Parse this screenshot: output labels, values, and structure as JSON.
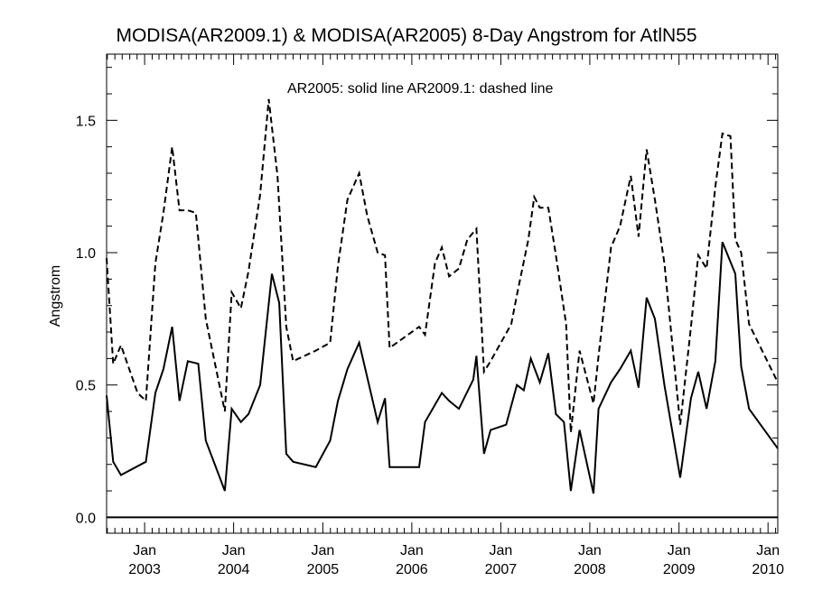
{
  "chart_data": {
    "type": "line",
    "title": "MODISA(AR2009.1) & MODISA(AR2005) 8-Day Angstrom for AtlN55",
    "ylabel": "Angstrom",
    "xlabel": "",
    "annotation": "AR2005: solid line   AR2009.1: dashed line",
    "ylim": [
      -0.06,
      1.75
    ],
    "xlim": [
      "2002-07-29",
      "2010-02-10"
    ],
    "y_ticks": [
      {
        "value": 0.0,
        "label": "0.0"
      },
      {
        "value": 0.5,
        "label": "0.5"
      },
      {
        "value": 1.0,
        "label": "1.0"
      },
      {
        "value": 1.5,
        "label": "1.5"
      }
    ],
    "x_ticks": [
      {
        "date": "2003-01-01",
        "label": "Jan",
        "year": "2003"
      },
      {
        "date": "2004-01-01",
        "label": "Jan",
        "year": "2004"
      },
      {
        "date": "2005-01-01",
        "label": "Jan",
        "year": "2005"
      },
      {
        "date": "2006-01-01",
        "label": "Jan",
        "year": "2006"
      },
      {
        "date": "2007-01-01",
        "label": "Jan",
        "year": "2007"
      },
      {
        "date": "2008-01-01",
        "label": "Jan",
        "year": "2008"
      },
      {
        "date": "2009-01-01",
        "label": "Jan",
        "year": "2009"
      },
      {
        "date": "2010-01-01",
        "label": "Jan",
        "year": "2010"
      }
    ],
    "grid": false,
    "series": [
      {
        "name": "AR2005",
        "style": "solid",
        "color": "#000000",
        "points": [
          [
            "2002-07-29",
            0.46
          ],
          [
            "2002-08-25",
            0.21
          ],
          [
            "2002-09-26",
            0.16
          ],
          [
            "2003-01-06",
            0.21
          ],
          [
            "2003-02-14",
            0.47
          ],
          [
            "2003-03-19",
            0.56
          ],
          [
            "2003-04-24",
            0.72
          ],
          [
            "2003-05-24",
            0.44
          ],
          [
            "2003-06-27",
            0.59
          ],
          [
            "2003-08-09",
            0.58
          ],
          [
            "2003-09-09",
            0.29
          ],
          [
            "2003-11-26",
            0.1
          ],
          [
            "2003-12-24",
            0.41
          ],
          [
            "2004-01-31",
            0.36
          ],
          [
            "2004-03-02",
            0.39
          ],
          [
            "2004-04-19",
            0.5
          ],
          [
            "2004-06-06",
            0.92
          ],
          [
            "2004-07-06",
            0.81
          ],
          [
            "2004-08-04",
            0.24
          ],
          [
            "2004-09-01",
            0.21
          ],
          [
            "2004-12-03",
            0.19
          ],
          [
            "2005-01-31",
            0.29
          ],
          [
            "2005-03-04",
            0.44
          ],
          [
            "2005-04-12",
            0.56
          ],
          [
            "2005-05-30",
            0.66
          ],
          [
            "2005-08-14",
            0.36
          ],
          [
            "2005-09-13",
            0.45
          ],
          [
            "2005-10-02",
            0.19
          ],
          [
            "2006-01-31",
            0.19
          ],
          [
            "2006-02-24",
            0.36
          ],
          [
            "2006-05-04",
            0.47
          ],
          [
            "2006-06-03",
            0.44
          ],
          [
            "2006-07-13",
            0.41
          ],
          [
            "2006-09-10",
            0.52
          ],
          [
            "2006-09-23",
            0.61
          ],
          [
            "2006-10-24",
            0.24
          ],
          [
            "2006-11-20",
            0.33
          ],
          [
            "2007-01-23",
            0.35
          ],
          [
            "2007-03-08",
            0.5
          ],
          [
            "2007-04-05",
            0.48
          ],
          [
            "2007-05-04",
            0.6
          ],
          [
            "2007-06-10",
            0.51
          ],
          [
            "2007-07-15",
            0.62
          ],
          [
            "2007-08-15",
            0.39
          ],
          [
            "2007-09-17",
            0.36
          ],
          [
            "2007-10-15",
            0.1
          ],
          [
            "2007-11-20",
            0.33
          ],
          [
            "2008-01-16",
            0.09
          ],
          [
            "2008-02-06",
            0.41
          ],
          [
            "2008-03-28",
            0.51
          ],
          [
            "2008-05-04",
            0.56
          ],
          [
            "2008-06-17",
            0.63
          ],
          [
            "2008-07-19",
            0.49
          ],
          [
            "2008-08-21",
            0.83
          ],
          [
            "2008-09-24",
            0.75
          ],
          [
            "2008-11-02",
            0.5
          ],
          [
            "2009-01-06",
            0.15
          ],
          [
            "2009-02-19",
            0.45
          ],
          [
            "2009-03-21",
            0.55
          ],
          [
            "2009-04-24",
            0.41
          ],
          [
            "2009-05-30",
            0.59
          ],
          [
            "2009-06-28",
            1.04
          ],
          [
            "2009-08-20",
            0.92
          ],
          [
            "2009-09-13",
            0.57
          ],
          [
            "2009-10-15",
            0.41
          ],
          [
            "2010-02-10",
            0.26
          ]
        ]
      },
      {
        "name": "AR2009.1",
        "style": "dashed",
        "color": "#000000",
        "points": [
          [
            "2002-07-29",
            0.98
          ],
          [
            "2002-08-25",
            0.58
          ],
          [
            "2002-09-26",
            0.65
          ],
          [
            "2002-12-03",
            0.47
          ],
          [
            "2003-01-06",
            0.44
          ],
          [
            "2003-02-14",
            0.96
          ],
          [
            "2003-03-19",
            1.15
          ],
          [
            "2003-04-24",
            1.4
          ],
          [
            "2003-05-24",
            1.16
          ],
          [
            "2003-06-27",
            1.16
          ],
          [
            "2003-07-30",
            1.15
          ],
          [
            "2003-09-09",
            0.75
          ],
          [
            "2003-11-26",
            0.4
          ],
          [
            "2003-12-24",
            0.85
          ],
          [
            "2004-01-31",
            0.79
          ],
          [
            "2004-03-02",
            0.93
          ],
          [
            "2004-04-19",
            1.22
          ],
          [
            "2004-05-24",
            1.58
          ],
          [
            "2004-06-29",
            1.29
          ],
          [
            "2004-08-04",
            0.72
          ],
          [
            "2004-09-01",
            0.59
          ],
          [
            "2004-12-03",
            0.63
          ],
          [
            "2005-01-31",
            0.66
          ],
          [
            "2005-03-04",
            0.95
          ],
          [
            "2005-04-12",
            1.2
          ],
          [
            "2005-05-30",
            1.3
          ],
          [
            "2005-07-02",
            1.14
          ],
          [
            "2005-08-14",
            1.0
          ],
          [
            "2005-09-13",
            0.99
          ],
          [
            "2005-10-02",
            0.64
          ],
          [
            "2006-01-31",
            0.72
          ],
          [
            "2006-02-24",
            0.69
          ],
          [
            "2006-04-06",
            0.96
          ],
          [
            "2006-05-04",
            1.02
          ],
          [
            "2006-06-03",
            0.91
          ],
          [
            "2006-07-13",
            0.94
          ],
          [
            "2006-08-17",
            1.05
          ],
          [
            "2006-09-23",
            1.09
          ],
          [
            "2006-10-24",
            0.55
          ],
          [
            "2006-11-20",
            0.59
          ],
          [
            "2007-02-13",
            0.73
          ],
          [
            "2007-03-08",
            0.84
          ],
          [
            "2007-04-24",
            1.05
          ],
          [
            "2007-05-18",
            1.21
          ],
          [
            "2007-06-10",
            1.17
          ],
          [
            "2007-07-15",
            1.17
          ],
          [
            "2007-08-15",
            0.99
          ],
          [
            "2007-09-26",
            0.73
          ],
          [
            "2007-10-15",
            0.32
          ],
          [
            "2007-11-20",
            0.63
          ],
          [
            "2008-01-16",
            0.43
          ],
          [
            "2008-02-06",
            0.61
          ],
          [
            "2008-03-28",
            1.02
          ],
          [
            "2008-05-04",
            1.1
          ],
          [
            "2008-06-17",
            1.29
          ],
          [
            "2008-07-19",
            1.06
          ],
          [
            "2008-08-21",
            1.39
          ],
          [
            "2008-09-24",
            1.2
          ],
          [
            "2008-11-02",
            0.96
          ],
          [
            "2009-01-06",
            0.35
          ],
          [
            "2009-02-19",
            0.72
          ],
          [
            "2009-03-21",
            0.99
          ],
          [
            "2009-04-24",
            0.94
          ],
          [
            "2009-05-30",
            1.25
          ],
          [
            "2009-06-28",
            1.45
          ],
          [
            "2009-07-31",
            1.44
          ],
          [
            "2009-08-20",
            1.05
          ],
          [
            "2009-09-13",
            1.0
          ],
          [
            "2009-10-15",
            0.73
          ],
          [
            "2010-02-10",
            0.51
          ]
        ]
      }
    ]
  }
}
